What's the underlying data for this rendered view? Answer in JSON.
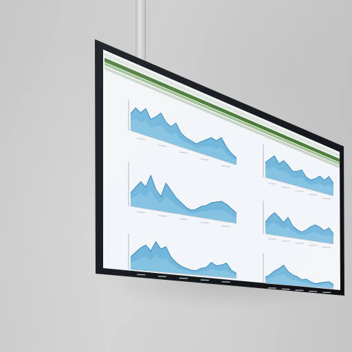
{
  "scene": {
    "wall_color": "#cecfce",
    "bezel_color": "#15181d",
    "screen_color": "#f3f6f8",
    "header_color": "#4a7a38",
    "chart_fill": "#5aaad6",
    "chart_fill_light": "#8cc8e6",
    "chart_line": "#2f7fb8"
  },
  "dashboard": {
    "panels": [
      {
        "name": "panel-left-1",
        "levels": [
          0.55,
          0.8,
          0.7,
          0.9,
          0.6,
          0.75,
          0.95,
          0.7,
          0.6,
          0.8,
          0.5,
          0.4,
          0.35,
          0.3,
          0.45,
          0.6,
          0.75,
          0.7,
          0.9,
          0.6,
          0.4,
          0.3
        ]
      },
      {
        "name": "panel-left-2",
        "levels": [
          0.3,
          0.45,
          0.6,
          0.5,
          0.8,
          0.5,
          0.35,
          0.7,
          0.55,
          0.4,
          0.3,
          0.2,
          0.15,
          0.2,
          0.3,
          0.35,
          0.45,
          0.5,
          0.55,
          0.5,
          0.4,
          0.3
        ]
      },
      {
        "name": "panel-left-3",
        "levels": [
          0.35,
          0.5,
          0.65,
          0.75,
          0.6,
          0.9,
          0.7,
          0.8,
          0.5,
          0.35,
          0.25,
          0.2,
          0.15,
          0.15,
          0.25,
          0.3,
          0.5,
          0.4,
          0.45,
          0.55,
          0.3,
          0.2
        ]
      },
      {
        "name": "panel-right-1",
        "levels": [
          0.45,
          0.6,
          0.75,
          0.55,
          0.7,
          0.6,
          0.45,
          0.5,
          0.6,
          0.4,
          0.35,
          0.45,
          0.6,
          0.5,
          0.7,
          0.5
        ]
      },
      {
        "name": "panel-right-2",
        "levels": [
          0.35,
          0.55,
          0.7,
          0.6,
          0.45,
          0.65,
          0.4,
          0.3,
          0.25,
          0.35,
          0.5,
          0.6,
          0.55,
          0.45,
          0.6,
          0.4
        ]
      },
      {
        "name": "panel-right-3",
        "levels": [
          0.2,
          0.3,
          0.45,
          0.55,
          0.7,
          0.5,
          0.4,
          0.35,
          0.25,
          0.3,
          0.2,
          0.15,
          0.2,
          0.25,
          0.3,
          0.2
        ]
      }
    ]
  }
}
